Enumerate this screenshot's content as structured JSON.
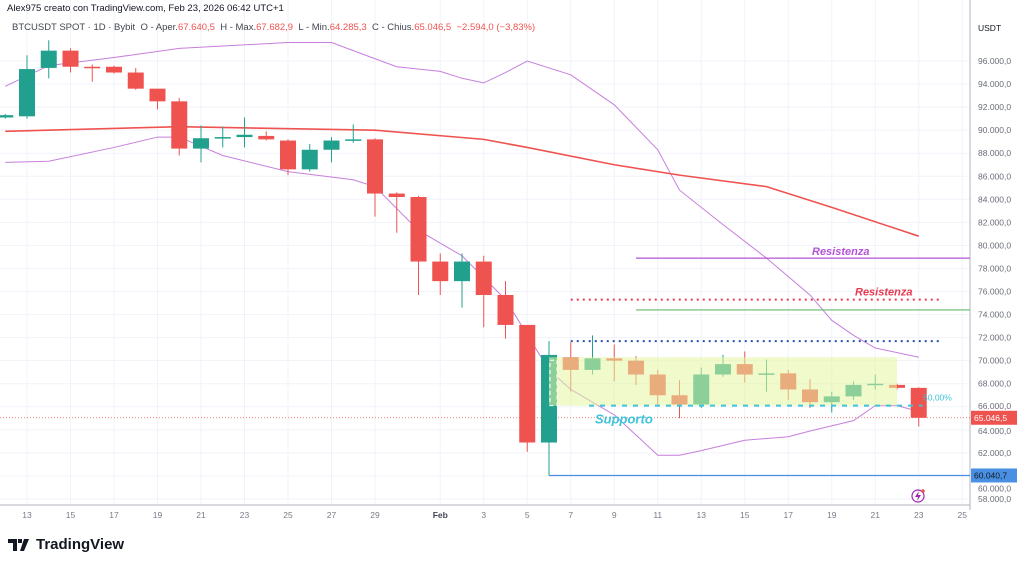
{
  "header": {
    "author_line": "Alex975 creato con TradingView.com, Feb 23, 2026 06:42 UTC+1",
    "symbol": "BTCUSDT SPOT · 1D · Bybit",
    "open_label": "O - Aper.",
    "open": "67.640,5",
    "high_label": "H - Max.",
    "high": "67.682,9",
    "low_label": "L - Min.",
    "low": "64.285,3",
    "close_label": "C - Chius.",
    "close": "65.046,5",
    "change": "−2.594,0 (−3,83%)"
  },
  "branding": {
    "logo_text": "TradingView"
  },
  "colors": {
    "up": "#22a08e",
    "down": "#ef5350",
    "ma": "#ef5350",
    "bands": "#c77fdc",
    "box": "#e3f5a0",
    "support": "#3ec3d8",
    "resistance_purple": "#b454d6",
    "resistance_red": "#e8394f",
    "green_line": "#66bb6a",
    "blue_dotted": "#2a4fb4",
    "blue_line": "#4a90e2"
  },
  "chart_data": {
    "type": "candlestick",
    "title": "",
    "ylabel": "USDT",
    "ylim": [
      57000,
      98500
    ],
    "grid": true,
    "y_ticks": [
      "58.000,0",
      "60.000,0",
      "62.000,0",
      "64.000,0",
      "66.000,0",
      "68.000,0",
      "70.000,0",
      "72.000,0",
      "74.000,0",
      "76.000,0",
      "78.000,0",
      "80.000,0",
      "82.000,0",
      "84.000,0",
      "86.000,0",
      "88.000,0",
      "90.000,0",
      "92.000,0",
      "94.000,0",
      "96.000,0"
    ],
    "x_ticks": [
      {
        "date": "2026-01-13",
        "label": "13"
      },
      {
        "date": "2026-01-15",
        "label": "15"
      },
      {
        "date": "2026-01-17",
        "label": "17"
      },
      {
        "date": "2026-01-19",
        "label": "19"
      },
      {
        "date": "2026-01-21",
        "label": "21"
      },
      {
        "date": "2026-01-23",
        "label": "23"
      },
      {
        "date": "2026-01-25",
        "label": "25"
      },
      {
        "date": "2026-01-27",
        "label": "27"
      },
      {
        "date": "2026-01-29",
        "label": "29"
      },
      {
        "date": "2026-02-01",
        "label": "Feb"
      },
      {
        "date": "2026-02-03",
        "label": "3"
      },
      {
        "date": "2026-02-05",
        "label": "5"
      },
      {
        "date": "2026-02-07",
        "label": "7"
      },
      {
        "date": "2026-02-09",
        "label": "9"
      },
      {
        "date": "2026-02-11",
        "label": "11"
      },
      {
        "date": "2026-02-13",
        "label": "13"
      },
      {
        "date": "2026-02-15",
        "label": "15"
      },
      {
        "date": "2026-02-17",
        "label": "17"
      },
      {
        "date": "2026-02-19",
        "label": "19"
      },
      {
        "date": "2026-02-21",
        "label": "21"
      },
      {
        "date": "2026-02-23",
        "label": "23"
      },
      {
        "date": "2026-02-25",
        "label": "25"
      }
    ],
    "candles": [
      {
        "date": "2026-01-12",
        "o": 91100,
        "h": 91400,
        "l": 91000,
        "c": 91300
      },
      {
        "date": "2026-01-13",
        "o": 91200,
        "h": 96500,
        "l": 91000,
        "c": 95300
      },
      {
        "date": "2026-01-14",
        "o": 95400,
        "h": 97800,
        "l": 94500,
        "c": 96900
      },
      {
        "date": "2026-01-15",
        "o": 96900,
        "h": 97100,
        "l": 95000,
        "c": 95500
      },
      {
        "date": "2026-01-16",
        "o": 95500,
        "h": 95700,
        "l": 94200,
        "c": 95400
      },
      {
        "date": "2026-01-17",
        "o": 95500,
        "h": 95600,
        "l": 94900,
        "c": 95000
      },
      {
        "date": "2026-01-18",
        "o": 95000,
        "h": 95400,
        "l": 93500,
        "c": 93600
      },
      {
        "date": "2026-01-19",
        "o": 93600,
        "h": 93600,
        "l": 91800,
        "c": 92500
      },
      {
        "date": "2026-01-20",
        "o": 92500,
        "h": 92800,
        "l": 87800,
        "c": 88400
      },
      {
        "date": "2026-01-21",
        "o": 88400,
        "h": 90400,
        "l": 87200,
        "c": 89300
      },
      {
        "date": "2026-01-22",
        "o": 89300,
        "h": 90300,
        "l": 88500,
        "c": 89400
      },
      {
        "date": "2026-01-23",
        "o": 89400,
        "h": 91100,
        "l": 88500,
        "c": 89600
      },
      {
        "date": "2026-01-24",
        "o": 89500,
        "h": 89900,
        "l": 89100,
        "c": 89200
      },
      {
        "date": "2026-01-25",
        "o": 89100,
        "h": 89200,
        "l": 86100,
        "c": 86600
      },
      {
        "date": "2026-01-26",
        "o": 86600,
        "h": 88800,
        "l": 86400,
        "c": 88300
      },
      {
        "date": "2026-01-27",
        "o": 88300,
        "h": 89400,
        "l": 87200,
        "c": 89100
      },
      {
        "date": "2026-01-28",
        "o": 89100,
        "h": 90500,
        "l": 88900,
        "c": 89200
      },
      {
        "date": "2026-01-29",
        "o": 89200,
        "h": 89300,
        "l": 82500,
        "c": 84500
      },
      {
        "date": "2026-01-30",
        "o": 84500,
        "h": 84600,
        "l": 81100,
        "c": 84200
      },
      {
        "date": "2026-01-31",
        "o": 84200,
        "h": 84300,
        "l": 75700,
        "c": 78600
      },
      {
        "date": "2026-02-01",
        "o": 78600,
        "h": 79300,
        "l": 75700,
        "c": 76900
      },
      {
        "date": "2026-02-02",
        "o": 76900,
        "h": 79300,
        "l": 74600,
        "c": 78600
      },
      {
        "date": "2026-02-03",
        "o": 78600,
        "h": 79100,
        "l": 72900,
        "c": 75700
      },
      {
        "date": "2026-02-04",
        "o": 75700,
        "h": 76900,
        "l": 71900,
        "c": 73100
      },
      {
        "date": "2026-02-05",
        "o": 73100,
        "h": 73100,
        "l": 62100,
        "c": 62900
      },
      {
        "date": "2026-02-06",
        "o": 62900,
        "h": 71700,
        "l": 60040,
        "c": 70500
      },
      {
        "date": "2026-02-07",
        "o": 70300,
        "h": 71600,
        "l": 67300,
        "c": 69200
      },
      {
        "date": "2026-02-08",
        "o": 69200,
        "h": 72200,
        "l": 68800,
        "c": 70200
      },
      {
        "date": "2026-02-09",
        "o": 70200,
        "h": 71400,
        "l": 68200,
        "c": 70000
      },
      {
        "date": "2026-02-10",
        "o": 70000,
        "h": 70400,
        "l": 67900,
        "c": 68800
      },
      {
        "date": "2026-02-11",
        "o": 68800,
        "h": 69200,
        "l": 66200,
        "c": 67000
      },
      {
        "date": "2026-02-12",
        "o": 67000,
        "h": 68300,
        "l": 65000,
        "c": 66200
      },
      {
        "date": "2026-02-13",
        "o": 66200,
        "h": 69400,
        "l": 65900,
        "c": 68800
      },
      {
        "date": "2026-02-14",
        "o": 68800,
        "h": 70500,
        "l": 68600,
        "c": 69700
      },
      {
        "date": "2026-02-15",
        "o": 69700,
        "h": 70800,
        "l": 68100,
        "c": 68800
      },
      {
        "date": "2026-02-16",
        "o": 68800,
        "h": 70100,
        "l": 67300,
        "c": 68900
      },
      {
        "date": "2026-02-17",
        "o": 68900,
        "h": 69200,
        "l": 66600,
        "c": 67500
      },
      {
        "date": "2026-02-18",
        "o": 67500,
        "h": 68400,
        "l": 65900,
        "c": 66400
      },
      {
        "date": "2026-02-19",
        "o": 66400,
        "h": 67300,
        "l": 65500,
        "c": 66900
      },
      {
        "date": "2026-02-20",
        "o": 66900,
        "h": 68200,
        "l": 66600,
        "c": 67900
      },
      {
        "date": "2026-02-21",
        "o": 67900,
        "h": 68800,
        "l": 67500,
        "c": 68000
      },
      {
        "date": "2026-02-22",
        "o": 67900,
        "h": 68000,
        "l": 67500,
        "c": 67640.5
      },
      {
        "date": "2026-02-23",
        "o": 67640.5,
        "h": 67682.9,
        "l": 64285.3,
        "c": 65046.5
      }
    ],
    "moving_average": [
      {
        "date": "2026-01-12",
        "v": 89900
      },
      {
        "date": "2026-01-20",
        "v": 90300
      },
      {
        "date": "2026-01-29",
        "v": 90000
      },
      {
        "date": "2026-02-03",
        "v": 89200
      },
      {
        "date": "2026-02-05",
        "v": 88500
      },
      {
        "date": "2026-02-09",
        "v": 87000
      },
      {
        "date": "2026-02-12",
        "v": 86100
      },
      {
        "date": "2026-02-16",
        "v": 85100
      },
      {
        "date": "2026-02-19",
        "v": 83300
      },
      {
        "date": "2026-02-23",
        "v": 80800
      }
    ],
    "upper_band": [
      {
        "date": "2026-01-12",
        "v": 93800
      },
      {
        "date": "2026-01-14",
        "v": 95600
      },
      {
        "date": "2026-01-17",
        "v": 96300
      },
      {
        "date": "2026-01-20",
        "v": 97100
      },
      {
        "date": "2026-01-25",
        "v": 97600
      },
      {
        "date": "2026-01-27",
        "v": 97600
      },
      {
        "date": "2026-01-30",
        "v": 95500
      },
      {
        "date": "2026-02-01",
        "v": 95100
      },
      {
        "date": "2026-02-02",
        "v": 94500
      },
      {
        "date": "2026-02-03",
        "v": 94100
      },
      {
        "date": "2026-02-04",
        "v": 95000
      },
      {
        "date": "2026-02-05",
        "v": 96000
      },
      {
        "date": "2026-02-07",
        "v": 94800
      },
      {
        "date": "2026-02-09",
        "v": 92200
      },
      {
        "date": "2026-02-11",
        "v": 88300
      },
      {
        "date": "2026-02-12",
        "v": 84800
      },
      {
        "date": "2026-02-14",
        "v": 81800
      },
      {
        "date": "2026-02-16",
        "v": 78900
      },
      {
        "date": "2026-02-18",
        "v": 75700
      },
      {
        "date": "2026-02-19",
        "v": 73500
      },
      {
        "date": "2026-02-20",
        "v": 72200
      },
      {
        "date": "2026-02-21",
        "v": 71100
      },
      {
        "date": "2026-02-23",
        "v": 70300
      }
    ],
    "lower_band": [
      {
        "date": "2026-01-12",
        "v": 87200
      },
      {
        "date": "2026-01-14",
        "v": 87300
      },
      {
        "date": "2026-01-17",
        "v": 88500
      },
      {
        "date": "2026-01-19",
        "v": 89400
      },
      {
        "date": "2026-01-20",
        "v": 89400
      },
      {
        "date": "2026-01-22",
        "v": 87800
      },
      {
        "date": "2026-01-25",
        "v": 86400
      },
      {
        "date": "2026-01-28",
        "v": 85700
      },
      {
        "date": "2026-01-29",
        "v": 85100
      },
      {
        "date": "2026-01-31",
        "v": 81300
      },
      {
        "date": "2026-02-02",
        "v": 79100
      },
      {
        "date": "2026-02-04",
        "v": 75300
      },
      {
        "date": "2026-02-06",
        "v": 69200
      },
      {
        "date": "2026-02-07",
        "v": 67500
      },
      {
        "date": "2026-02-09",
        "v": 65300
      },
      {
        "date": "2026-02-11",
        "v": 61800
      },
      {
        "date": "2026-02-12",
        "v": 61800
      },
      {
        "date": "2026-02-13",
        "v": 62200
      },
      {
        "date": "2026-02-15",
        "v": 63100
      },
      {
        "date": "2026-02-17",
        "v": 63400
      },
      {
        "date": "2026-02-18",
        "v": 63900
      },
      {
        "date": "2026-02-20",
        "v": 64800
      },
      {
        "date": "2026-02-21",
        "v": 66100
      },
      {
        "date": "2026-02-22",
        "v": 66100
      },
      {
        "date": "2026-02-23",
        "v": 65600
      }
    ],
    "drawings": {
      "resistance_purple": {
        "price": 78900,
        "from": "2026-02-10",
        "label": "Resistenza"
      },
      "resistance_red": {
        "price": 75300,
        "from": "2026-02-07",
        "to": "2026-02-24",
        "label": "Resistenza"
      },
      "green_line": {
        "price": 74400,
        "from": "2026-02-10"
      },
      "blue_dotted": {
        "price": 71700,
        "from": "2026-02-07",
        "to": "2026-02-24"
      },
      "blue_line": {
        "price": 60040.7,
        "from": "2026-02-06",
        "label": "60.040,7"
      },
      "support_box": {
        "from": "2026-02-06",
        "to": "2026-02-22",
        "top": 70300,
        "bottom": 66100,
        "label": "Supporto",
        "percent_label": "50,00%"
      }
    },
    "last_price_label": "65.046,5"
  }
}
